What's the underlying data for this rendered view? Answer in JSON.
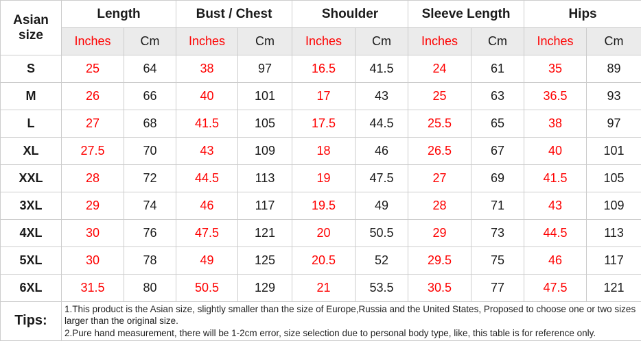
{
  "table": {
    "corner_header": "Asian size",
    "measurement_groups": [
      "Length",
      "Bust / Chest",
      "Shoulder",
      "Sleeve Length",
      "Hips"
    ],
    "unit_headers": [
      "Inches",
      "Cm"
    ],
    "rows": [
      {
        "size": "S",
        "values": [
          25,
          64,
          38,
          97,
          16.5,
          41.5,
          24,
          61,
          35,
          89
        ]
      },
      {
        "size": "M",
        "values": [
          26,
          66,
          40,
          101,
          17,
          43,
          25,
          63,
          36.5,
          93
        ]
      },
      {
        "size": "L",
        "values": [
          27,
          68,
          41.5,
          105,
          17.5,
          44.5,
          25.5,
          65,
          38,
          97
        ]
      },
      {
        "size": "XL",
        "values": [
          27.5,
          70,
          43,
          109,
          18,
          46,
          26.5,
          67,
          40,
          101
        ]
      },
      {
        "size": "XXL",
        "values": [
          28,
          72,
          44.5,
          113,
          19,
          47.5,
          27,
          69,
          41.5,
          105
        ]
      },
      {
        "size": "3XL",
        "values": [
          29,
          74,
          46,
          117,
          19.5,
          49,
          28,
          71,
          43,
          109
        ]
      },
      {
        "size": "4XL",
        "values": [
          30,
          76,
          47.5,
          121,
          20,
          50.5,
          29,
          73,
          44.5,
          113
        ]
      },
      {
        "size": "5XL",
        "values": [
          30,
          78,
          49,
          125,
          20.5,
          52,
          29.5,
          75,
          46,
          117
        ]
      },
      {
        "size": "6XL",
        "values": [
          31.5,
          80,
          50.5,
          129,
          21,
          53.5,
          30.5,
          77,
          47.5,
          121
        ]
      }
    ],
    "tips": {
      "label": "Tips:",
      "lines": [
        "1.This product is the Asian size, slightly smaller than the size of Europe,Russia and the United States, Proposed to choose one or two sizes larger than the original size.",
        "2.Pure hand measurement, there will be 1-2cm error, size selection due to personal body type, like, this table is for reference only."
      ]
    },
    "colors": {
      "inches_text": "#fe0000",
      "cm_text": "#1a1a1a",
      "border": "#cccccc",
      "unit_row_bg": "#ebebeb"
    }
  }
}
